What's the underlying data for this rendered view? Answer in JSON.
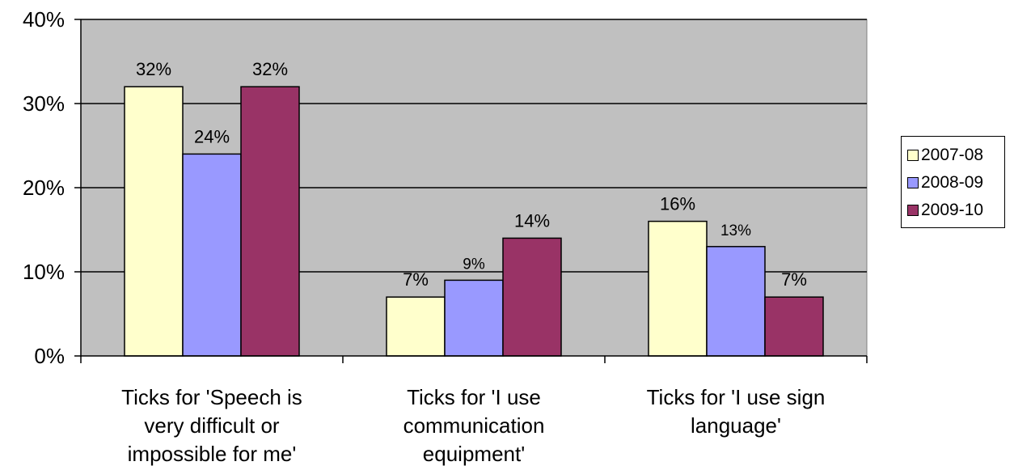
{
  "chart_data": {
    "type": "bar",
    "categories": [
      [
        "Ticks for 'Speech is",
        "very difficult or",
        "impossible for me'"
      ],
      [
        "Ticks for 'I use",
        "communication",
        "equipment'"
      ],
      [
        "Ticks for 'I use sign",
        "language'"
      ]
    ],
    "series": [
      {
        "name": "2007-08",
        "color": "#ffffcc",
        "values": [
          32,
          7,
          16
        ],
        "labels": [
          "32%",
          "7%",
          "16%"
        ]
      },
      {
        "name": "2008-09",
        "color": "#9999ff",
        "values": [
          24,
          9,
          13
        ],
        "labels": [
          "24%",
          "9%",
          "13%"
        ]
      },
      {
        "name": "2009-10",
        "color": "#993366",
        "values": [
          32,
          14,
          7
        ],
        "labels": [
          "32%",
          "14%",
          "7%"
        ]
      }
    ],
    "yticks": [
      "0%",
      "10%",
      "20%",
      "30%",
      "40%"
    ],
    "ylim": [
      0,
      40
    ],
    "plot_background": "#c0c0c0",
    "grid": true,
    "legend_position": "right"
  }
}
